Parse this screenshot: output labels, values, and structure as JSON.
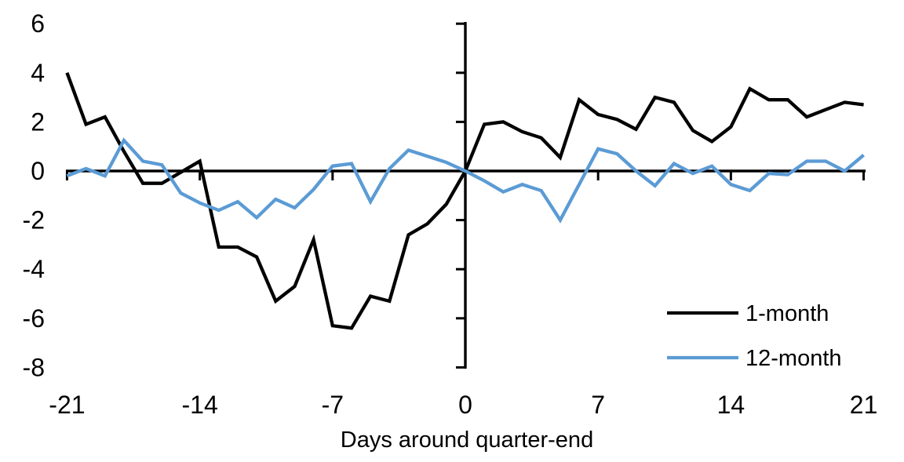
{
  "chart_data": {
    "type": "line",
    "title": "",
    "xlabel": "Days around quarter-end",
    "ylabel": "",
    "xlim": [
      -21,
      21
    ],
    "ylim": [
      -8,
      6
    ],
    "grid": false,
    "legend_position": "lower-right",
    "axis_color": "#000000",
    "x_ticks": [
      -21,
      -14,
      -7,
      0,
      7,
      14,
      21
    ],
    "y_ticks": [
      6,
      4,
      2,
      0,
      -2,
      -4,
      -6,
      -8
    ],
    "x": [
      -21,
      -20,
      -19,
      -18,
      -17,
      -16,
      -15,
      -14,
      -13,
      -12,
      -11,
      -10,
      -9,
      -8,
      -7,
      -6,
      -5,
      -4,
      -3,
      -2,
      -1,
      0,
      1,
      2,
      3,
      4,
      5,
      6,
      7,
      8,
      9,
      10,
      11,
      12,
      13,
      14,
      15,
      16,
      17,
      18,
      19,
      20,
      21
    ],
    "series": [
      {
        "name": "1-month",
        "color": "#000000",
        "values": [
          4.0,
          1.9,
          2.2,
          0.8,
          -0.5,
          -0.5,
          -0.05,
          0.4,
          -3.1,
          -3.1,
          -3.5,
          -5.3,
          -4.7,
          -2.8,
          -6.3,
          -6.4,
          -5.1,
          -5.3,
          -2.6,
          -2.15,
          -1.35,
          0.0,
          1.9,
          2.0,
          1.6,
          1.35,
          0.55,
          2.9,
          2.3,
          2.1,
          1.7,
          3.0,
          2.8,
          1.65,
          1.2,
          1.8,
          3.35,
          2.9,
          2.9,
          2.2,
          2.5,
          2.8,
          2.7
        ]
      },
      {
        "name": "12-month",
        "color": "#5B9BD5",
        "values": [
          -0.2,
          0.1,
          -0.2,
          1.25,
          0.4,
          0.25,
          -0.9,
          -1.3,
          -1.6,
          -1.25,
          -1.9,
          -1.15,
          -1.5,
          -0.75,
          0.2,
          0.3,
          -1.25,
          0.1,
          0.85,
          0.6,
          0.35,
          0.0,
          -0.4,
          -0.85,
          -0.55,
          -0.8,
          -2.0,
          -0.55,
          0.9,
          0.7,
          0.0,
          -0.6,
          0.3,
          -0.1,
          0.2,
          -0.55,
          -0.8,
          -0.1,
          -0.15,
          0.4,
          0.4,
          0.0,
          0.65
        ]
      }
    ]
  }
}
